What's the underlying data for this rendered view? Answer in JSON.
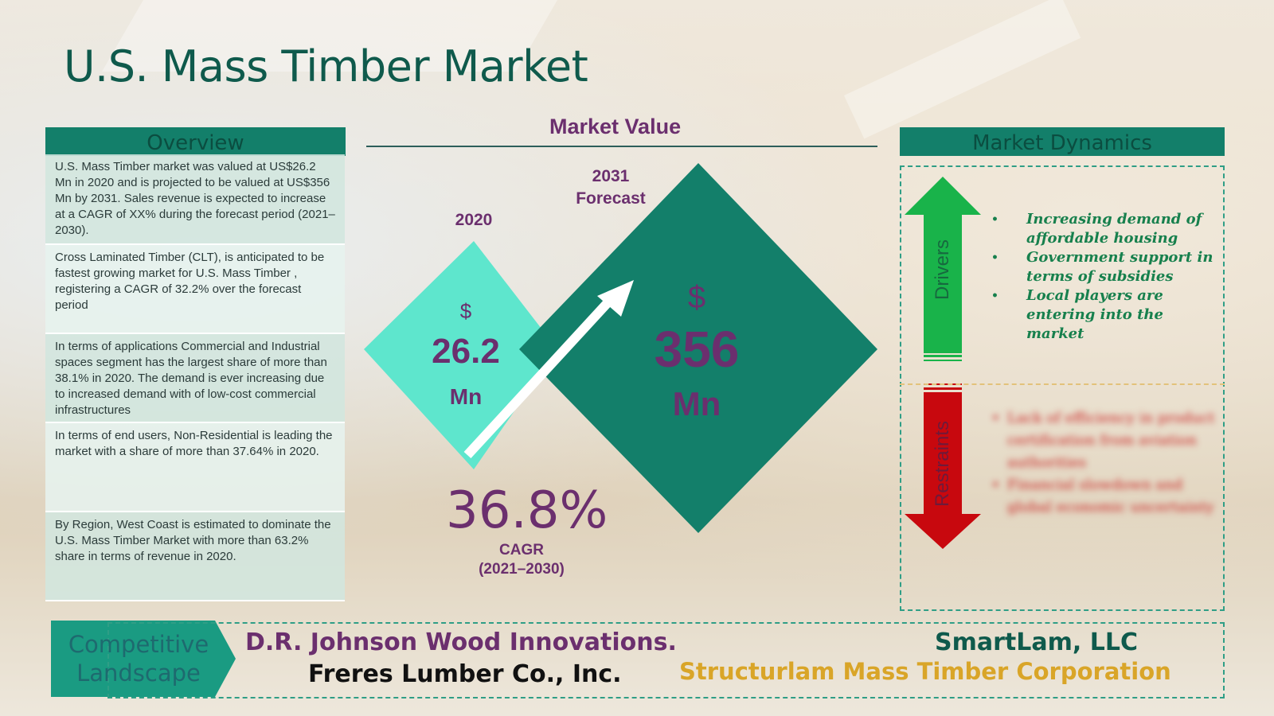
{
  "title": "U.S. Mass Timber Market",
  "colors": {
    "teal_dark": "#137f6a",
    "teal_light": "#5ee6cd",
    "purple": "#6b2f6e",
    "driver_green": "#17b14a",
    "restraint_red": "#c8080e",
    "gold": "#d9a528"
  },
  "overview": {
    "header": "Overview",
    "items": [
      "U.S. Mass Timber market was valued at US$26.2 Mn in 2020 and is projected to be valued at US$356 Mn by 2031. Sales revenue is expected to increase at a CAGR of XX% during the forecast period (2021–2030).",
      "Cross Laminated Timber (CLT), is anticipated to be fastest growing market for U.S. Mass Timber , registering a CAGR of 32.2% over the forecast period",
      "In terms of applications Commercial and Industrial spaces segment has the largest share of more than 38.1% in 2020. The demand is ever increasing due to increased demand with of low-cost commercial infrastructures",
      "In terms of end users, Non-Residential is leading the market with a share of more than 37.64% in 2020.",
      "By Region, West Coast is estimated to dominate the U.S. Mass Timber  Market with more than 63.2% share in terms of revenue in 2020."
    ]
  },
  "market_value": {
    "title": "Market Value",
    "year_2020": "2020",
    "year_2031_line1": "2031",
    "year_2031_line2": "Forecast",
    "small": {
      "currency": "$",
      "value": "26.2",
      "unit": "Mn"
    },
    "big": {
      "currency": "$",
      "value": "356",
      "unit": "Mn"
    },
    "cagr_value": "36.8%",
    "cagr_label": "CAGR",
    "cagr_period": "(2021–2030)"
  },
  "dynamics": {
    "header": "Market Dynamics",
    "drivers_label": "Drivers",
    "restraints_label": "Restraints",
    "drivers": [
      "Increasing demand of affordable housing",
      "Government support in terms of subsidies",
      "Local players are entering into the market"
    ],
    "restraints": [
      "Lack of efficiency in product certification from aviation authorities",
      "Financial slowdown and global economic uncertainty"
    ]
  },
  "competitive": {
    "label_line1": "Competitive",
    "label_line2": "Landscape",
    "companies": [
      "D.R. Johnson Wood Innovations.",
      "Freres Lumber Co., Inc.",
      "SmartLam, LLC",
      "Structurlam Mass Timber Corporation"
    ]
  }
}
